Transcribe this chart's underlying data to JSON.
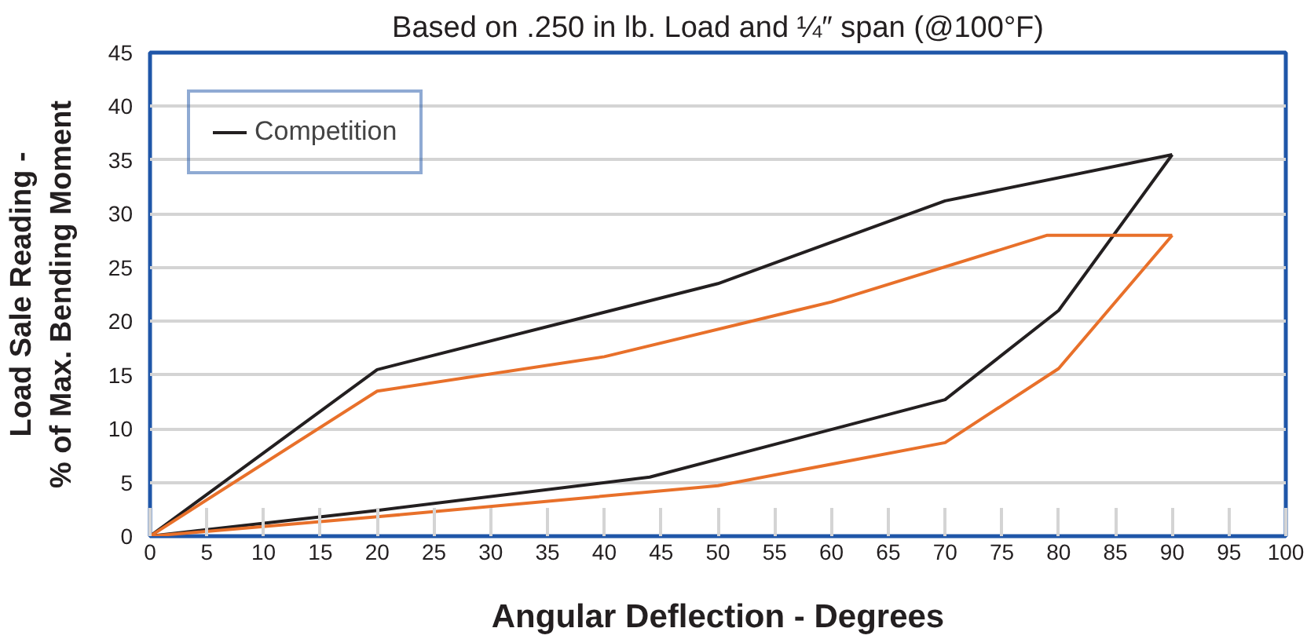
{
  "chart_data": {
    "type": "line",
    "title": "Based on .250 in lb. Load and ¼″ span (@100°F)",
    "xlabel": "Angular Deflection - Degrees",
    "ylabel": "Load Sale Reading -\n% of Max. Bending Moment",
    "series": [
      {
        "name": "Competition",
        "color": "#231f20",
        "x": [
          0,
          20,
          50,
          70,
          90
        ],
        "values": [
          0,
          15.5,
          23.5,
          31.2,
          35.5
        ]
      },
      {
        "color": "#231f20",
        "x": [
          0,
          20,
          44,
          70,
          80,
          90
        ],
        "values": [
          0,
          2.4,
          5.5,
          12.7,
          21,
          35.5
        ]
      },
      {
        "color": "#e8702a",
        "x": [
          0,
          20,
          40,
          60,
          79,
          90
        ],
        "values": [
          0,
          13.5,
          16.7,
          21.8,
          28,
          28
        ]
      },
      {
        "color": "#e8702a",
        "x": [
          0,
          20,
          50,
          70,
          80,
          90
        ],
        "values": [
          0,
          1.8,
          4.7,
          8.7,
          15.6,
          28
        ]
      }
    ],
    "xlim": [
      0,
      100
    ],
    "xticks": [
      0,
      5,
      10,
      15,
      20,
      25,
      30,
      35,
      40,
      45,
      50,
      55,
      60,
      65,
      70,
      75,
      80,
      85,
      90,
      95,
      100
    ],
    "ylim": [
      0,
      45
    ],
    "yticks": [
      0,
      5,
      10,
      15,
      20,
      25,
      30,
      35,
      40,
      45
    ],
    "grid": "y",
    "legend": "top left"
  }
}
